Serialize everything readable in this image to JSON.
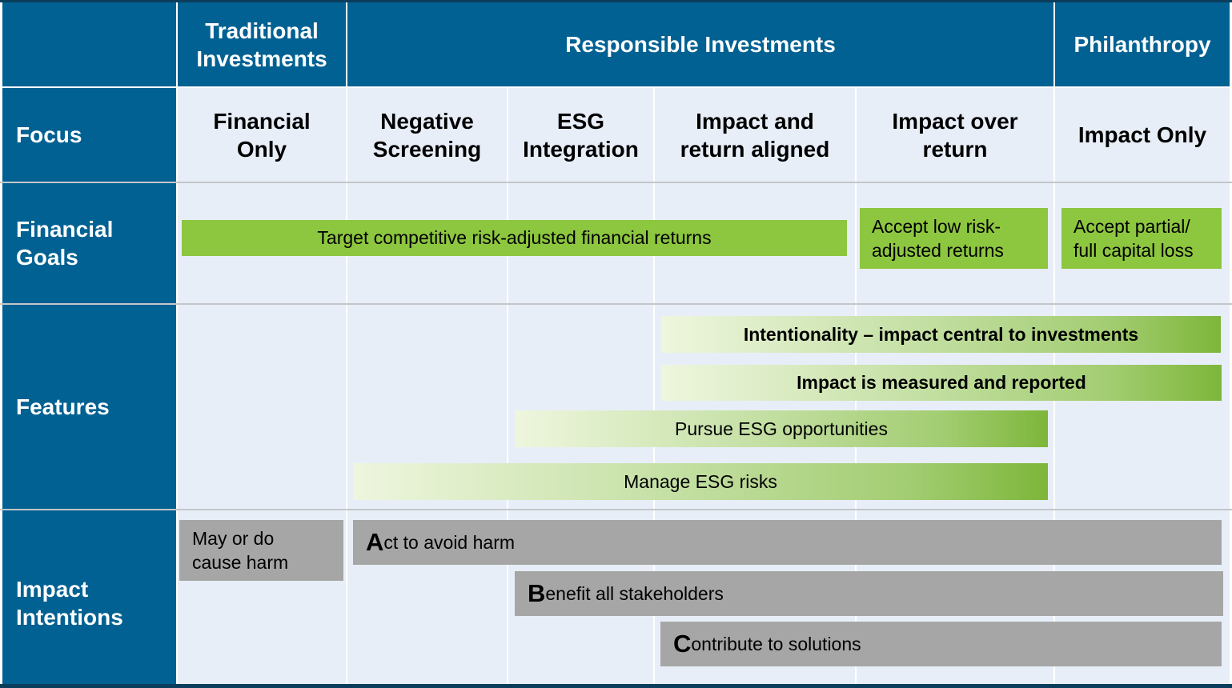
{
  "header": {
    "traditional": "Traditional Investments",
    "responsible": "Responsible Investments",
    "philanthropy": "Philanthropy"
  },
  "rows": {
    "focus": "Focus",
    "financial_goals": "Financial Goals",
    "features": "Features",
    "impact_intentions": "Impact Intentions"
  },
  "focus": [
    "Financial Only",
    "Negative Screening",
    "ESG Integration",
    "Impact and return aligned",
    "Impact over return",
    "Impact Only"
  ],
  "financial_goals": {
    "competitive": "Target competitive risk-adjusted financial returns",
    "low": "Accept low  risk-adjusted returns",
    "loss": "Accept partial/ full capital loss"
  },
  "features": {
    "intentionality": "Intentionality – impact central to investments",
    "measured": "Impact is measured and reported",
    "pursue": "Pursue ESG opportunities",
    "manage": "Manage ESG risks"
  },
  "impact": {
    "harm": "May or do cause harm",
    "avoid_initial": "A",
    "avoid_rest": "ct to avoid harm",
    "benefit_initial": "B",
    "benefit_rest": "enefit all stakeholders",
    "contribute_initial": "C",
    "contribute_rest": "ontribute to solutions"
  },
  "colors": {
    "blue": "#006192",
    "green": "#8dc63f",
    "gray": "#a6a6a6",
    "light": "#e8eef8"
  }
}
